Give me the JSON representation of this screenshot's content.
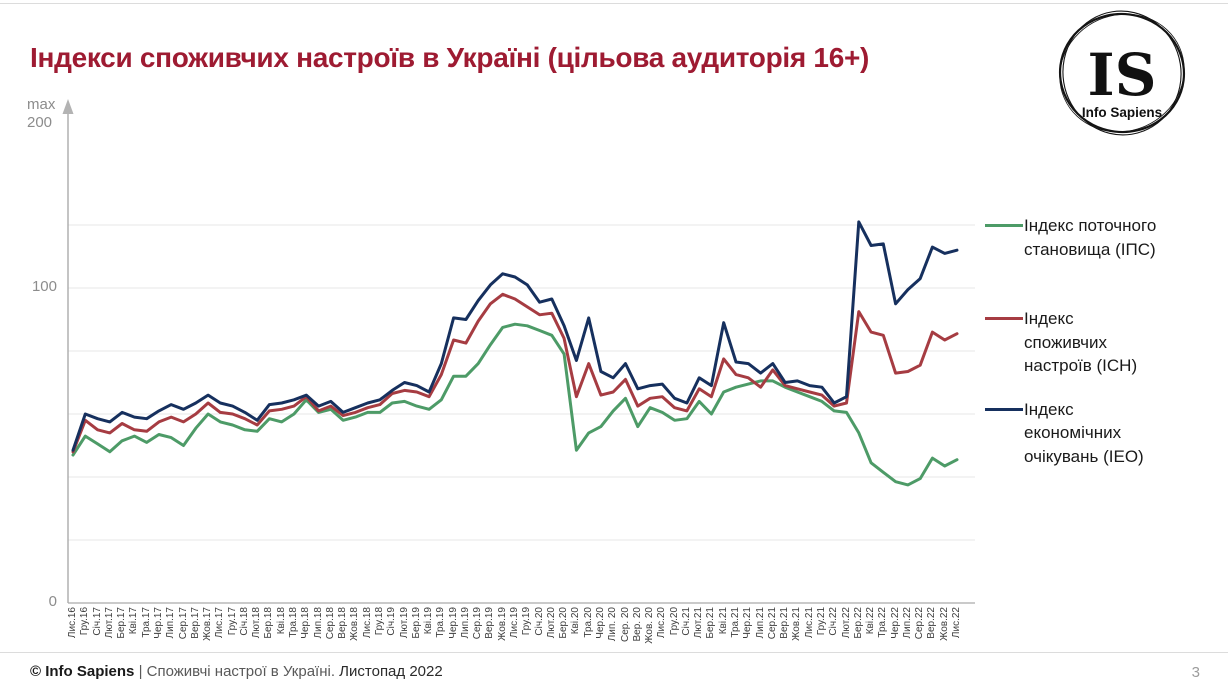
{
  "slide": {
    "title": "Індекси споживчих настроїв в Україні (цільова аудиторія 16+)",
    "page_number": "3",
    "logo": {
      "monogram": "IS",
      "name": "Info Sapiens"
    },
    "footer": {
      "brand": "© Info Sapiens",
      "separator": " | ",
      "text": "Споживчі настрої в Україні. ",
      "period": "Листопад 2022"
    }
  },
  "axis": {
    "max_label": "max",
    "top_value": "200",
    "mid_value": "100",
    "zero_value": "0"
  },
  "legend": {
    "items": [
      {
        "label": "Індекс поточного\nстановища (ІПС)",
        "color": "#4d9b67"
      },
      {
        "label": "Індекс\nспоживчих\nнастроїв (ІСН)",
        "color": "#a63c42"
      },
      {
        "label": "Індекс\nекономічних\nочікувань (ІЕО)",
        "color": "#16305e"
      }
    ]
  },
  "chart_data": {
    "type": "line",
    "title": "Індекси споживчих настроїв в Україні (цільова аудиторія 16+)",
    "xlabel": "",
    "ylabel": "",
    "ylim": [
      0,
      200
    ],
    "gridlines": [
      20,
      40,
      60,
      80,
      100,
      120
    ],
    "grid": true,
    "legend_position": "right",
    "categories": [
      "Лис.16",
      "Гру.16",
      "Січ.17",
      "Лют.17",
      "Бер.17",
      "Кві.17",
      "Тра.17",
      "Чер.17",
      "Лип.17",
      "Сер.17",
      "Вер.17",
      "Жов.17",
      "Лис.17",
      "Гру.17",
      "Січ.18",
      "Лют.18",
      "Бер.18",
      "Кві.18",
      "Тра.18",
      "Чер.18",
      "Лип.18",
      "Сер.18",
      "Вер.18",
      "Жов.18",
      "Лис.18",
      "Гру.18",
      "Січ.19",
      "Лют.19",
      "Бер.19",
      "Кві.19",
      "Тра.19",
      "Чер.19",
      "Лип.19",
      "Сер.19",
      "Вер.19",
      "Жов.19",
      "Лис.19",
      "Гру.19",
      "Січ.20",
      "Лют.20",
      "Бер.20",
      "Кві.20",
      "Тра.20",
      "Чер.20",
      "Лип. 20",
      "Сер. 20",
      "Вер. 20",
      "Жов. 20",
      "Лис.20",
      "Гру.20",
      "Січ.21",
      "Лют.21",
      "Бер.21",
      "Кві.21",
      "Тра.21",
      "Чер.21",
      "Лип.21",
      "Сер.21",
      "Вер.21",
      "Жов.21",
      "Лис.21",
      "Гру.21",
      "Січ.22",
      "Лют.22",
      "Бер.22",
      "Кві.22",
      "Тра.22",
      "Чер.22",
      "Лип.22",
      "Сер.22",
      "Вер.22",
      "Жов.22",
      "Лис.22"
    ],
    "series": [
      {
        "id": "ips",
        "name": "Індекс поточного становища (ІПС)",
        "color": "#4d9b67",
        "values": [
          47,
          53,
          50.5,
          48,
          51.5,
          53,
          51,
          53.5,
          52.5,
          50,
          55.5,
          60,
          57.5,
          56.5,
          55,
          54.5,
          58.5,
          57.5,
          60,
          64.5,
          60.5,
          61.5,
          58,
          59,
          60.5,
          60.5,
          63.5,
          64,
          62.5,
          61.5,
          64.5,
          72,
          72,
          76,
          82,
          87.5,
          88.5,
          88,
          86.5,
          85,
          79,
          48.5,
          54,
          56,
          61,
          65,
          56,
          62,
          60.5,
          58,
          58.5,
          64,
          60,
          67,
          68.5,
          69.5,
          70.5,
          70.5,
          68.5,
          67,
          65.5,
          64,
          61,
          60.5,
          54,
          44.5,
          41.5,
          38.5,
          37.5,
          39.5,
          46,
          43.5,
          45.5
        ]
      },
      {
        "id": "isn",
        "name": "Індекс споживчих настроїв (ІСН)",
        "color": "#a63c42",
        "values": [
          48,
          58,
          55,
          54,
          57,
          55,
          54.5,
          57.5,
          59,
          57.5,
          60,
          63.5,
          60.5,
          60,
          58.5,
          56.5,
          61,
          61.5,
          62.5,
          65.5,
          61,
          62.5,
          59.5,
          60.5,
          62,
          63,
          66.5,
          67.5,
          67,
          65.5,
          72.5,
          83.5,
          82.5,
          89.5,
          95,
          98,
          96.5,
          94,
          91.5,
          92,
          84,
          65.5,
          76,
          66,
          67,
          71,
          62.5,
          65,
          65.5,
          62,
          61,
          68,
          65.5,
          77.5,
          72.5,
          71.5,
          68.5,
          74,
          69,
          68,
          67,
          66,
          62.5,
          63.5,
          92.5,
          86,
          85,
          73,
          73.5,
          75.5,
          86,
          83.5,
          85.5
        ]
      },
      {
        "id": "ieo",
        "name": "Індекс економічних очікувань (ІЕО)",
        "color": "#16305e",
        "values": [
          48.5,
          60,
          58.5,
          57.5,
          60.5,
          59,
          58.5,
          61,
          63,
          61.5,
          63.5,
          66,
          63.5,
          62.5,
          60.5,
          58,
          63,
          63.5,
          64.5,
          66,
          62.5,
          64,
          60.5,
          62,
          63.5,
          64.5,
          67.5,
          70,
          69,
          67,
          76,
          90.5,
          90,
          96,
          101,
          104.5,
          103.5,
          101,
          95.5,
          96.5,
          88,
          77,
          90.5,
          73.5,
          71.5,
          76,
          68,
          69,
          69.5,
          65,
          63.5,
          71.5,
          69,
          89,
          76.5,
          76,
          73,
          76,
          70,
          70.5,
          69,
          68.5,
          63.5,
          65.5,
          121,
          113.5,
          114,
          95,
          99.5,
          103,
          113,
          111,
          112
        ]
      }
    ]
  }
}
